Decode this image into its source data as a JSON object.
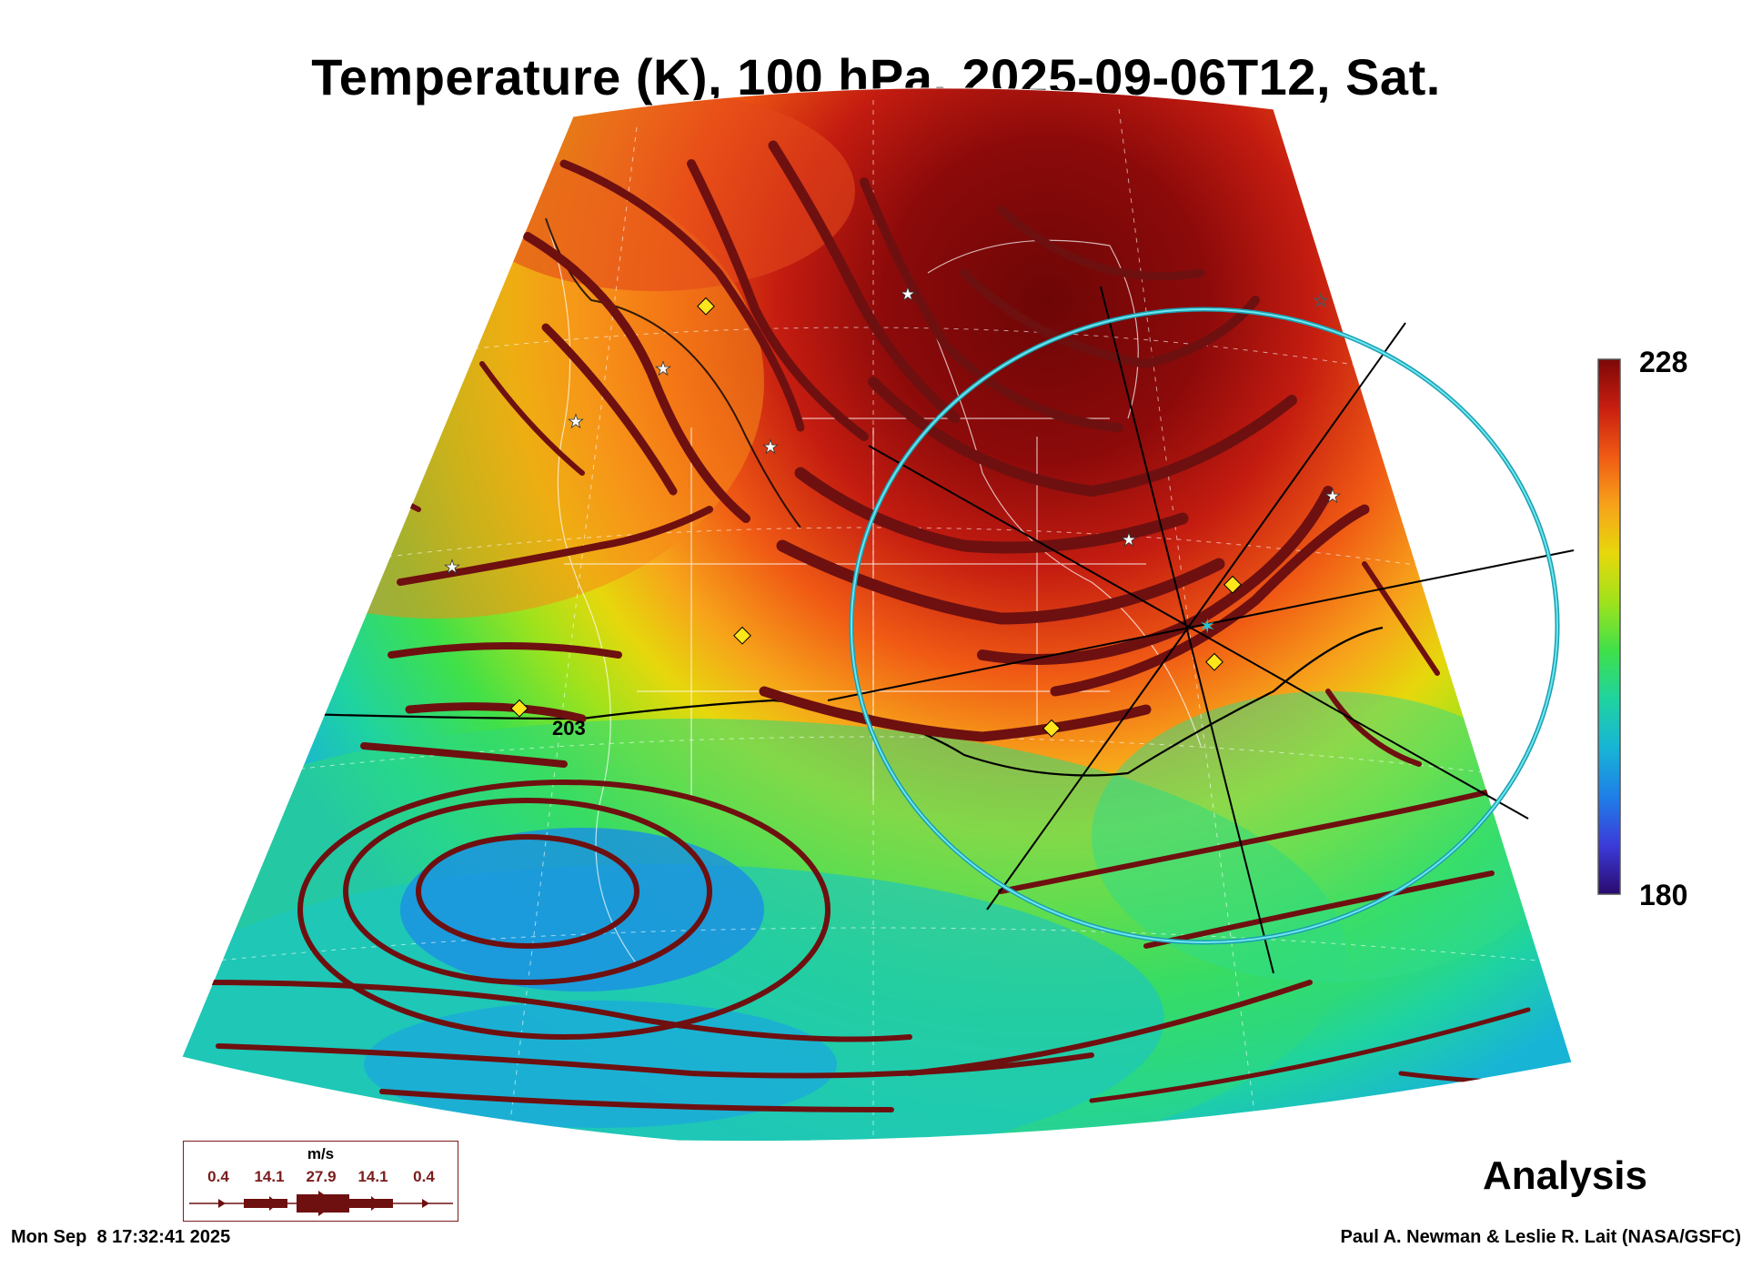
{
  "title": "Temperature (K), 100 hPa, 2025-09-06T12, Sat.",
  "colorbar": {
    "max_label": "228",
    "min_label": "180",
    "colors": [
      "#2a0a6e",
      "#3b3bd9",
      "#1f7fe8",
      "#18b4d6",
      "#1fd3a0",
      "#3fe04a",
      "#9fe21c",
      "#e6d80c",
      "#f7a31a",
      "#f05a14",
      "#c81e10",
      "#7c0808"
    ]
  },
  "contour_label": "203",
  "analysis_label": "Analysis",
  "wind_legend": {
    "unit": "m/s",
    "ticks": [
      "0.4",
      "14.1",
      "27.9",
      "14.1",
      "0.4"
    ],
    "color": "#6e1010"
  },
  "footer": {
    "timestamp": "Mon Sep  8 17:32:41 2025",
    "credit": "Paul A. Newman & Leslie R. Lait (NASA/GSFC)"
  },
  "markers": {
    "star_color": "#ffffff",
    "diamond_color": "#ffe61a",
    "ring_color": "#20c8d8"
  }
}
